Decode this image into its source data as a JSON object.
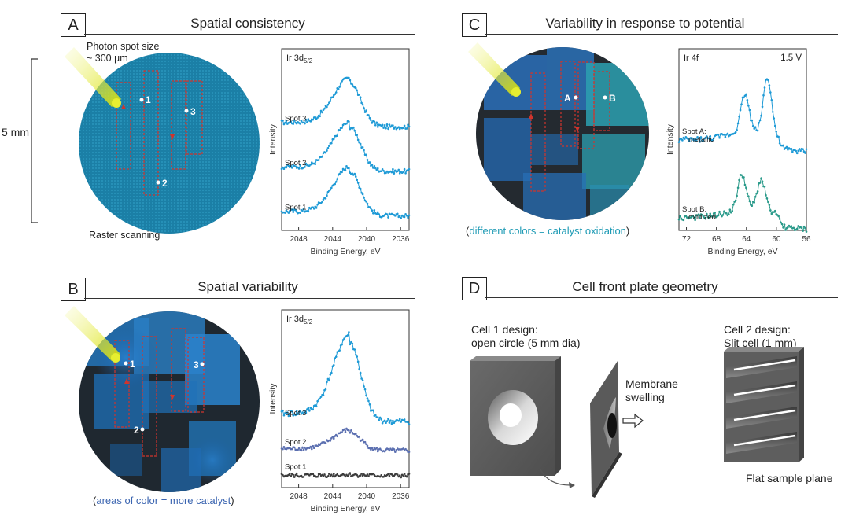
{
  "panels": {
    "A": {
      "letter": "A",
      "title": "Spatial consistency",
      "spot_size_line1": "Photon spot size",
      "spot_size_line2": "~ 300 µm",
      "scale_label": "5 mm",
      "raster_label": "Raster scanning",
      "points": [
        "1",
        "2",
        "3"
      ]
    },
    "B": {
      "letter": "B",
      "title": "Spatial variability",
      "points": [
        "1",
        "2",
        "3"
      ],
      "caption_open": "(",
      "caption_text": "areas of color = more catalyst",
      "caption_close": ")"
    },
    "C": {
      "letter": "C",
      "title": "Variability in response to potential",
      "points": [
        "A",
        "B"
      ],
      "caption_open": "(",
      "caption_text": "different colors = catalyst oxidation",
      "caption_close": ")"
    },
    "D": {
      "letter": "D",
      "title": "Cell front plate geometry",
      "cell1_line1": "Cell 1 design:",
      "cell1_line2": "open circle (5 mm dia)",
      "swelling_line1": "Membrane",
      "swelling_line2": "swelling",
      "cell2_line1": "Cell 2 design:",
      "cell2_line2": "Slit cell (1 mm)",
      "flat_label": "Flat sample plane"
    }
  },
  "colors": {
    "cyan_series": "#1e9ad6",
    "purple_series": "#5b6fb0",
    "dark_series": "#3c3c3c",
    "teal_series": "#2a9a8a",
    "raster_red": "#d0342c",
    "beam_yellow": "#d8e000",
    "caption_blue": "#3a64b0",
    "caption_teal": "#1f9bb5"
  },
  "chart_data": [
    {
      "type": "line",
      "panel": "A",
      "element_label": "Ir 3d",
      "element_sub": "5/2",
      "xlabel": "Binding Energy, eV",
      "ylabel": "Intensity",
      "xlim": [
        2050,
        2035
      ],
      "x_ticks": [
        "2048",
        "2044",
        "2040",
        "2036"
      ],
      "peak_x": 2042,
      "series": [
        {
          "name": "Spot 3",
          "offset": 2.0,
          "amp": 1.0,
          "base": 0.15,
          "noise": 0.05,
          "color": "#1e9ad6"
        },
        {
          "name": "Spot 2",
          "offset": 1.0,
          "amp": 1.0,
          "base": 0.15,
          "noise": 0.05,
          "color": "#1e9ad6"
        },
        {
          "name": "Spot 1",
          "offset": 0.0,
          "amp": 1.0,
          "base": 0.15,
          "noise": 0.05,
          "color": "#1e9ad6"
        }
      ]
    },
    {
      "type": "line",
      "panel": "B",
      "element_label": "Ir 3d",
      "element_sub": "5/2",
      "xlabel": "Binding Energy, eV",
      "ylabel": "Intensity",
      "xlim": [
        2050,
        2035
      ],
      "x_ticks": [
        "2048",
        "2044",
        "2040",
        "2036"
      ],
      "peak_x": 2042,
      "series": [
        {
          "name": "Spot 3",
          "offset": 1.2,
          "amp": 1.9,
          "base": 0.2,
          "noise": 0.07,
          "color": "#1e9ad6"
        },
        {
          "name": "Spot 2",
          "offset": 0.55,
          "amp": 0.45,
          "base": 0.15,
          "noise": 0.05,
          "color": "#5b6fb0"
        },
        {
          "name": "Spot 1",
          "offset": 0.0,
          "amp": 0.02,
          "base": 0.1,
          "noise": 0.05,
          "color": "#3c3c3c"
        }
      ]
    },
    {
      "type": "line",
      "panel": "C",
      "element_label": "Ir 4f",
      "potential": "1.5 V",
      "xlabel": "Binding Energy, eV",
      "ylabel": "Intensity",
      "xlim": [
        73,
        56
      ],
      "x_ticks": [
        "72",
        "68",
        "64",
        "60",
        "56"
      ],
      "series": [
        {
          "name": "Spot A:",
          "name2": "metallic",
          "offset": 1.6,
          "peaks": [
            [
              64.2,
              0.8
            ],
            [
              61.2,
              1.2
            ]
          ],
          "base": 0.15,
          "noise": 0.06,
          "color": "#1e9ad6"
        },
        {
          "name": "Spot B:",
          "name2": "oxidized",
          "offset": 0.0,
          "peaks": [
            [
              64.6,
              0.75
            ],
            [
              62.0,
              0.65
            ]
          ],
          "base": 0.1,
          "noise": 0.06,
          "color": "#2a9a8a"
        }
      ]
    }
  ]
}
